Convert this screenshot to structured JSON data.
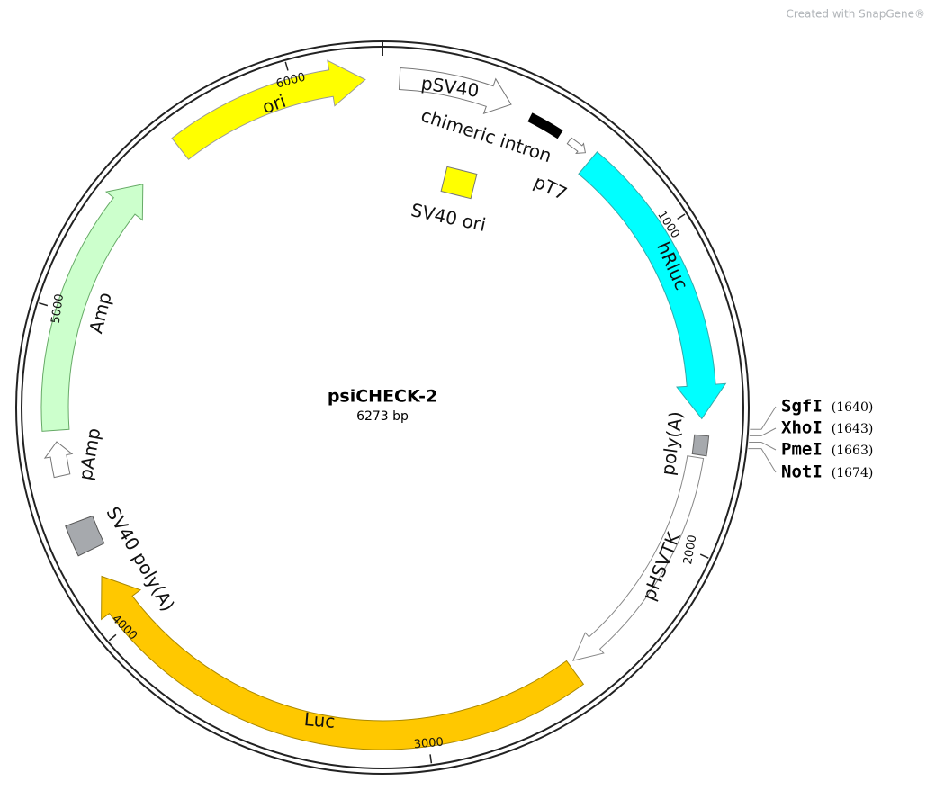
{
  "watermark": "Created with SnapGene®",
  "plasmid": {
    "name": "psiCHECK-2",
    "length": "6273 bp"
  },
  "features": [
    {
      "label": "ori"
    },
    {
      "label": "pSV40"
    },
    {
      "label": "chimeric intron"
    },
    {
      "label": "pT7"
    },
    {
      "label": "SV40 ori"
    },
    {
      "label": "hRluc"
    },
    {
      "label": "poly(A)"
    },
    {
      "label": "pHSVTK"
    },
    {
      "label": "Luc"
    },
    {
      "label": "SV40 poly(A)"
    },
    {
      "label": "pAmp"
    },
    {
      "label": "Amp"
    }
  ],
  "ticks": [
    "1000",
    "2000",
    "3000",
    "4000",
    "5000",
    "6000"
  ],
  "sites": [
    {
      "name": "SgfI",
      "position": "(1640)"
    },
    {
      "name": "XhoI",
      "position": "(1643)"
    },
    {
      "name": "PmeI",
      "position": "(1663)"
    },
    {
      "name": "NotI",
      "position": "(1674)"
    }
  ]
}
